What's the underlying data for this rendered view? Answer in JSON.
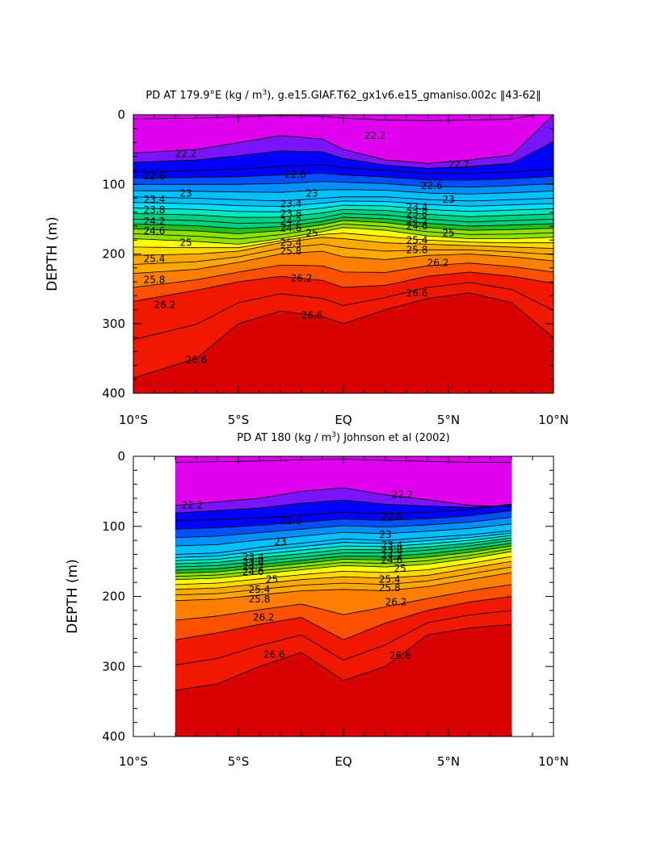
{
  "chart_data": [
    {
      "type": "heatmap",
      "subtype": "filled-contour",
      "title": "PD AT 179.9°E (kg / m³), g.e15.GIAF.T62_gx1v6.e15_gmaniso.002c ‖43-62‖",
      "title_parts": {
        "prefix": "PD AT 179.9°E (kg / m",
        "superscript": "3",
        "suffix": "), g.e15.GIAF.T62_gx1v6.e15_gmaniso.002c ‖43-62‖"
      },
      "xlabel": "",
      "ylabel": "DEPTH (m)",
      "xlim": [
        -10,
        10
      ],
      "ylim": [
        400,
        0
      ],
      "x_ticks": [
        {
          "value": -10,
          "label": "10°S"
        },
        {
          "value": -5,
          "label": "5°S"
        },
        {
          "value": 0,
          "label": "EQ"
        },
        {
          "value": 5,
          "label": "5°N"
        },
        {
          "value": 10,
          "label": "10°N"
        }
      ],
      "y_ticks": [
        {
          "value": 0,
          "label": "0"
        },
        {
          "value": 100,
          "label": "100"
        },
        {
          "value": 200,
          "label": "200"
        },
        {
          "value": 300,
          "label": "300"
        },
        {
          "value": 400,
          "label": "400"
        }
      ],
      "data_x_range": [
        -10,
        10
      ],
      "contour_levels": [
        21.8,
        22.2,
        22.6,
        22.8,
        23,
        23.2,
        23.4,
        23.6,
        23.8,
        24,
        24.2,
        24.4,
        24.6,
        24.8,
        25,
        25.2,
        25.4,
        25.6,
        25.8,
        26,
        26.2,
        26.4,
        26.6,
        26.8,
        27
      ],
      "isopycnals": [
        {
          "level": 22.2,
          "x": [
            -10,
            -7,
            -5,
            -3,
            -1,
            0,
            2,
            4,
            6,
            8,
            10
          ],
          "depth": [
            55,
            50,
            40,
            30,
            35,
            50,
            65,
            70,
            65,
            58,
            0
          ]
        },
        {
          "level": 22.6,
          "x": [
            -10,
            -7,
            -5,
            -3,
            -1,
            0,
            2,
            4,
            6,
            8,
            10
          ],
          "depth": [
            82,
            80,
            78,
            74,
            72,
            76,
            80,
            84,
            84,
            82,
            78
          ]
        },
        {
          "level": 23.4,
          "x": [
            -10,
            -7,
            -5,
            -3,
            -1,
            0,
            2,
            4,
            6,
            8,
            10
          ],
          "depth": [
            118,
            120,
            122,
            124,
            120,
            118,
            118,
            122,
            124,
            122,
            120
          ]
        },
        {
          "level": 24.2,
          "x": [
            -10,
            -7,
            -5,
            -3,
            -1,
            0,
            2,
            4,
            6,
            8,
            10
          ],
          "depth": [
            150,
            152,
            156,
            155,
            148,
            142,
            144,
            150,
            154,
            152,
            150
          ]
        },
        {
          "level": 25,
          "x": [
            -10,
            -7,
            -5,
            -3,
            -1,
            0,
            2,
            4,
            6,
            8,
            10
          ],
          "depth": [
            178,
            182,
            186,
            178,
            168,
            162,
            166,
            174,
            178,
            178,
            176
          ]
        },
        {
          "level": 25.4,
          "x": [
            -10,
            -7,
            -5,
            -3,
            -1,
            0,
            2,
            4,
            6,
            8,
            10
          ],
          "depth": [
            202,
            200,
            196,
            184,
            176,
            178,
            184,
            186,
            188,
            190,
            192
          ]
        },
        {
          "level": 25.8,
          "x": [
            -10,
            -7,
            -5,
            -3,
            -1,
            0,
            2,
            4,
            6,
            8,
            10
          ],
          "depth": [
            228,
            222,
            212,
            200,
            196,
            204,
            208,
            202,
            200,
            204,
            210
          ]
        },
        {
          "level": 26.2,
          "x": [
            -10,
            -7,
            -5,
            -3,
            -1,
            0,
            2,
            4,
            6,
            8,
            10
          ],
          "depth": [
            268,
            252,
            240,
            232,
            238,
            248,
            245,
            232,
            226,
            232,
            242
          ]
        },
        {
          "level": 26.6,
          "x": [
            -10,
            -7,
            -5,
            -3,
            -1,
            0,
            2,
            4,
            6,
            8,
            10
          ],
          "depth": [
            378,
            350,
            300,
            282,
            290,
            300,
            280,
            264,
            256,
            270,
            320
          ]
        }
      ],
      "label_positions": [
        {
          "text": "22.2",
          "x": 1.5,
          "depth": 30
        },
        {
          "text": "22.2",
          "x": -7.5,
          "depth": 56
        },
        {
          "text": "22.2",
          "x": 5.5,
          "depth": 72
        },
        {
          "text": "22.6",
          "x": -9,
          "depth": 88
        },
        {
          "text": "22.6",
          "x": -2.3,
          "depth": 86
        },
        {
          "text": "22.6",
          "x": 4.2,
          "depth": 102
        },
        {
          "text": "23",
          "x": -7.5,
          "depth": 113
        },
        {
          "text": "23",
          "x": -1.5,
          "depth": 113
        },
        {
          "text": "23",
          "x": 5,
          "depth": 122
        },
        {
          "text": "23.4",
          "x": -9,
          "depth": 122
        },
        {
          "text": "23.4",
          "x": -2.5,
          "depth": 128
        },
        {
          "text": "23.4",
          "x": 3.5,
          "depth": 133
        },
        {
          "text": "23.8",
          "x": -9,
          "depth": 137
        },
        {
          "text": "23.8",
          "x": -2.5,
          "depth": 142
        },
        {
          "text": "23.8",
          "x": 3.5,
          "depth": 142
        },
        {
          "text": "24.2",
          "x": -9,
          "depth": 153
        },
        {
          "text": "24.2",
          "x": -2.5,
          "depth": 153
        },
        {
          "text": "24.2",
          "x": 3.5,
          "depth": 153
        },
        {
          "text": "24.6",
          "x": -9,
          "depth": 167
        },
        {
          "text": "24.6",
          "x": -2.5,
          "depth": 163
        },
        {
          "text": "24.6",
          "x": 3.5,
          "depth": 160
        },
        {
          "text": "25",
          "x": -7.5,
          "depth": 184
        },
        {
          "text": "25",
          "x": -1.5,
          "depth": 170
        },
        {
          "text": "25",
          "x": 5,
          "depth": 170
        },
        {
          "text": "25.4",
          "x": -9,
          "depth": 207
        },
        {
          "text": "25.4",
          "x": -2.5,
          "depth": 184
        },
        {
          "text": "25.4",
          "x": 3.5,
          "depth": 180
        },
        {
          "text": "25.8",
          "x": -9,
          "depth": 237
        },
        {
          "text": "25.8",
          "x": -2.5,
          "depth": 196
        },
        {
          "text": "25.8",
          "x": 3.5,
          "depth": 194
        },
        {
          "text": "26.2",
          "x": -8.5,
          "depth": 273
        },
        {
          "text": "26.2",
          "x": -2,
          "depth": 235
        },
        {
          "text": "26.2",
          "x": 4.5,
          "depth": 213
        },
        {
          "text": "26.6",
          "x": -1.5,
          "depth": 288
        },
        {
          "text": "26.6",
          "x": -7,
          "depth": 352
        },
        {
          "text": "26.6",
          "x": 3.5,
          "depth": 256
        }
      ]
    },
    {
      "type": "heatmap",
      "subtype": "filled-contour",
      "title": "PD AT 180 (kg / m³) Johnson et al (2002)",
      "title_parts": {
        "prefix": "PD AT 180 (kg / m",
        "superscript": "3",
        "suffix": ") Johnson et al (2002)"
      },
      "xlabel": "",
      "ylabel": "DEPTH (m)",
      "xlim": [
        -10,
        10
      ],
      "ylim": [
        400,
        0
      ],
      "x_ticks": [
        {
          "value": -10,
          "label": "10°S"
        },
        {
          "value": -5,
          "label": "5°S"
        },
        {
          "value": 0,
          "label": "EQ"
        },
        {
          "value": 5,
          "label": "5°N"
        },
        {
          "value": 10,
          "label": "10°N"
        }
      ],
      "y_ticks": [
        {
          "value": 0,
          "label": "0"
        },
        {
          "value": 100,
          "label": "100"
        },
        {
          "value": 200,
          "label": "200"
        },
        {
          "value": 300,
          "label": "300"
        },
        {
          "value": 400,
          "label": "400"
        }
      ],
      "data_x_range": [
        -8,
        8
      ],
      "contour_levels": [
        21.8,
        22.2,
        22.6,
        22.8,
        23,
        23.2,
        23.4,
        23.6,
        23.8,
        24,
        24.2,
        24.4,
        24.6,
        24.8,
        25,
        25.2,
        25.4,
        25.6,
        25.8,
        26,
        26.2,
        26.4,
        26.6,
        26.8,
        27
      ],
      "isopycnals": [
        {
          "level": 22.2,
          "x": [
            -8,
            -6,
            -4,
            -2,
            0,
            2,
            4,
            6,
            8
          ],
          "depth": [
            70,
            65,
            60,
            50,
            45,
            55,
            62,
            70,
            72
          ]
        },
        {
          "level": 22.6,
          "x": [
            -8,
            -6,
            -4,
            -2,
            0,
            2,
            4,
            6,
            8
          ],
          "depth": [
            92,
            90,
            88,
            84,
            80,
            82,
            80,
            76,
            68
          ]
        },
        {
          "level": 23.4,
          "x": [
            -8,
            -6,
            -4,
            -2,
            0,
            2,
            4,
            6,
            8
          ],
          "depth": [
            140,
            138,
            130,
            124,
            118,
            120,
            116,
            112,
            106
          ]
        },
        {
          "level": 24.2,
          "x": [
            -8,
            -6,
            -4,
            -2,
            0,
            2,
            4,
            6,
            8
          ],
          "depth": [
            158,
            156,
            150,
            144,
            138,
            138,
            134,
            128,
            120
          ]
        },
        {
          "level": 25,
          "x": [
            -8,
            -6,
            -4,
            -2,
            0,
            2,
            4,
            6,
            8
          ],
          "depth": [
            176,
            174,
            168,
            162,
            156,
            158,
            154,
            146,
            136
          ]
        },
        {
          "level": 25.4,
          "x": [
            -8,
            -6,
            -4,
            -2,
            0,
            2,
            4,
            6,
            8
          ],
          "depth": [
            190,
            188,
            182,
            176,
            172,
            174,
            170,
            160,
            150
          ]
        },
        {
          "level": 25.8,
          "x": [
            -8,
            -6,
            -4,
            -2,
            0,
            2,
            4,
            6,
            8
          ],
          "depth": [
            206,
            204,
            198,
            192,
            190,
            192,
            186,
            176,
            166
          ]
        },
        {
          "level": 26.2,
          "x": [
            -8,
            -6,
            -4,
            -2,
            0,
            2,
            4,
            6,
            8
          ],
          "depth": [
            262,
            252,
            240,
            230,
            262,
            238,
            220,
            208,
            200
          ]
        },
        {
          "level": 26.6,
          "x": [
            -8,
            -6,
            -4,
            -2,
            0,
            2,
            4,
            6,
            8
          ],
          "depth": [
            334,
            325,
            300,
            280,
            320,
            300,
            255,
            245,
            240
          ]
        }
      ],
      "label_positions": [
        {
          "text": "22.2",
          "x": -7.2,
          "depth": 70
        },
        {
          "text": "22.2",
          "x": 2.8,
          "depth": 55
        },
        {
          "text": "22.6",
          "x": -2.5,
          "depth": 92
        },
        {
          "text": "22.6",
          "x": 2.3,
          "depth": 86
        },
        {
          "text": "23",
          "x": -3,
          "depth": 122
        },
        {
          "text": "23",
          "x": 2,
          "depth": 112
        },
        {
          "text": "23.4",
          "x": -4.3,
          "depth": 144
        },
        {
          "text": "23.4",
          "x": 2.3,
          "depth": 127
        },
        {
          "text": "23.8",
          "x": -4.3,
          "depth": 151
        },
        {
          "text": "23.8",
          "x": 2.3,
          "depth": 134
        },
        {
          "text": "24.2",
          "x": -4.3,
          "depth": 158
        },
        {
          "text": "24.2",
          "x": 2.3,
          "depth": 141
        },
        {
          "text": "24.6",
          "x": -4.3,
          "depth": 165
        },
        {
          "text": "24.6",
          "x": 2.3,
          "depth": 148
        },
        {
          "text": "25",
          "x": -3.4,
          "depth": 176
        },
        {
          "text": "25",
          "x": 2.7,
          "depth": 160
        },
        {
          "text": "25.4",
          "x": -4,
          "depth": 190
        },
        {
          "text": "25.4",
          "x": 2.2,
          "depth": 176
        },
        {
          "text": "25.8",
          "x": -4,
          "depth": 204
        },
        {
          "text": "25.8",
          "x": 2.2,
          "depth": 188
        },
        {
          "text": "26.2",
          "x": -3.8,
          "depth": 230
        },
        {
          "text": "26.2",
          "x": 2.5,
          "depth": 208
        },
        {
          "text": "26.6",
          "x": -3.3,
          "depth": 283
        },
        {
          "text": "26.6",
          "x": 2.7,
          "depth": 285
        }
      ]
    }
  ],
  "palette": [
    "#e000f0",
    "#7a14ff",
    "#0000ff",
    "#0050ff",
    "#0090ff",
    "#00c0ff",
    "#00e0f8",
    "#00e8c0",
    "#00d080",
    "#20c020",
    "#90e000",
    "#ffff00",
    "#ffd800",
    "#ffa800",
    "#ff8000",
    "#ff5000",
    "#f01800",
    "#d80000",
    "#c00000"
  ]
}
